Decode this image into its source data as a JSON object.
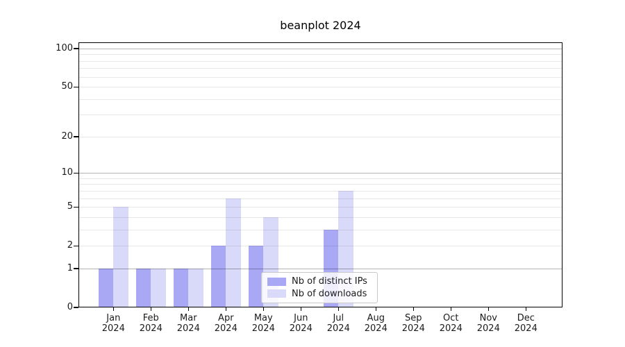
{
  "chart_data": {
    "type": "bar",
    "title": "beanplot 2024",
    "categories": [
      "Jan",
      "Feb",
      "Mar",
      "Apr",
      "May",
      "Jun",
      "Jul",
      "Aug",
      "Sep",
      "Oct",
      "Nov",
      "Dec"
    ],
    "x_year": "2024",
    "series": [
      {
        "name": "Nb of distinct IPs",
        "color": "#a8a8f5",
        "values": [
          1,
          1,
          1,
          2,
          2,
          0,
          3,
          0,
          0,
          0,
          0,
          0
        ]
      },
      {
        "name": "Nb of downloads",
        "color": "#d9d9f9",
        "values": [
          5,
          1,
          1,
          6,
          4,
          0,
          7,
          0,
          0,
          0,
          0,
          0
        ]
      }
    ],
    "y_tick_labels": [
      "0",
      "1",
      "2",
      "5",
      "10",
      "20",
      "50",
      "100"
    ],
    "y_tick_values": [
      0,
      1,
      2,
      5,
      10,
      20,
      50,
      100
    ],
    "y_scale": "log10(1+v)",
    "ylim": [
      0,
      112
    ],
    "xlabel": "",
    "ylabel": "",
    "grid": "horizontal",
    "legend_position": "inside lower center"
  },
  "colors": {
    "background": "#ffffff",
    "axis": "#000000",
    "text": "#1a1a1a",
    "major_grid": "rgba(0,0,0,0.30)",
    "minor_grid": "rgba(0,0,0,0.09)",
    "bar_distinct_ips": "#a8a8f5",
    "bar_downloads": "#d9d9f9"
  }
}
